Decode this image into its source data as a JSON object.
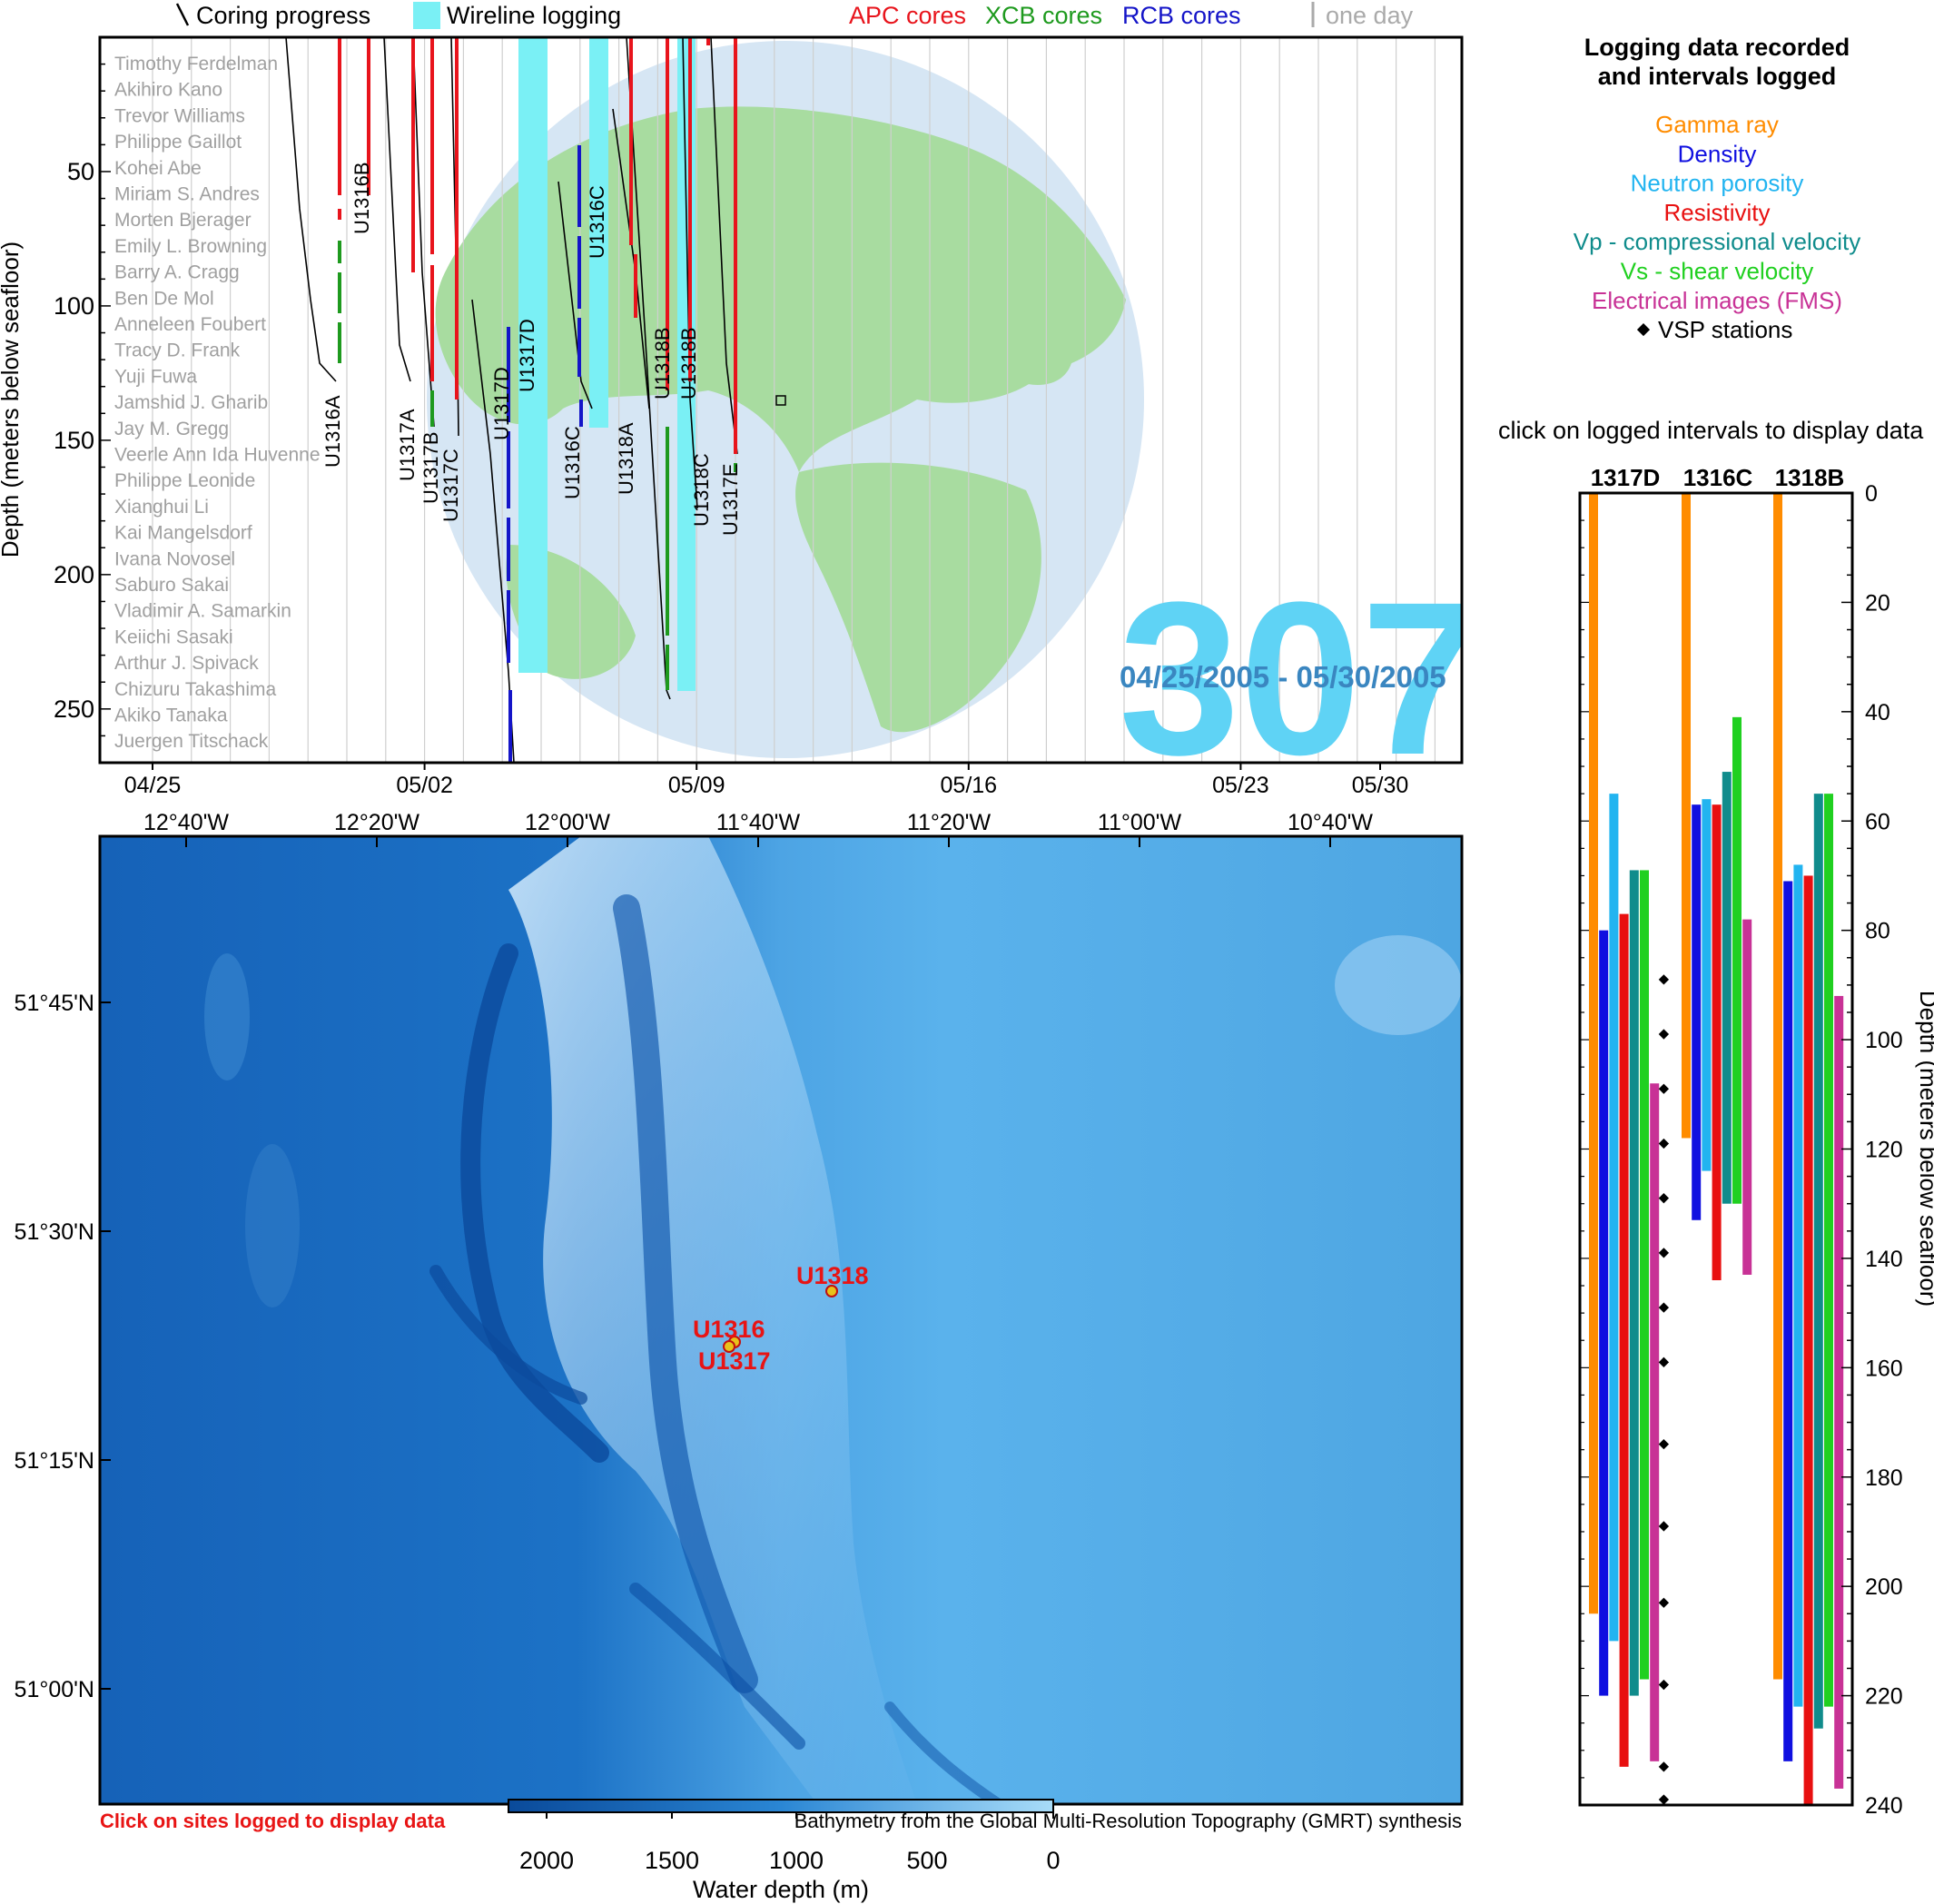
{
  "legend": {
    "coring": "Coring progress",
    "wireline": "Wireline logging",
    "apc": "APC cores",
    "xcb": "XCB cores",
    "rcb": "RCB cores",
    "oneday": "one day"
  },
  "colors": {
    "apc": "#e8141c",
    "xcb": "#1e9a1e",
    "rcb": "#1414c8",
    "wireline": "#7af0f5",
    "expedition_number": "#5fd3f5",
    "date_range": "#3a86c0",
    "globe_ocean": "#d6e6f4",
    "globe_land": "#a8dca0"
  },
  "expedition": {
    "number": "307",
    "date_range": "04/25/2005 - 05/30/2005"
  },
  "scientists": [
    "Timothy Ferdelman",
    "Akihiro Kano",
    "Trevor Williams",
    "Philippe Gaillot",
    "Kohei Abe",
    "Miriam S. Andres",
    "Morten Bjerager",
    "Emily L. Browning",
    "Barry A. Cragg",
    "Ben De Mol",
    "Anneleen Foubert",
    "Tracy D. Frank",
    "Yuji Fuwa",
    "Jamshid J. Gharib",
    "Jay M. Gregg",
    "Veerle Ann Ida Huvenne",
    "Philippe Leonide",
    "Xianghui Li",
    "Kai Mangelsdorf",
    "Ivana Novosel",
    "Saburo Sakai",
    "Vladimir A. Samarkin",
    "Keiichi Sasaki",
    "Arthur J. Spivack",
    "Chizuru Takashima",
    "Akiko Tanaka",
    "Juergen Titschack"
  ],
  "timeline": {
    "ylabel": "Depth (meters below seafloor)",
    "yticks": [
      "50",
      "100",
      "150",
      "200",
      "250"
    ],
    "xticks": [
      "04/25",
      "05/02",
      "05/09",
      "05/16",
      "05/23",
      "05/30"
    ]
  },
  "holes": [
    {
      "label": "U1316A"
    },
    {
      "label": "U1316B"
    },
    {
      "label": "U1317A"
    },
    {
      "label": "U1317B"
    },
    {
      "label": "U1317C"
    },
    {
      "label": "U1317D"
    },
    {
      "label": "U1317D"
    },
    {
      "label": "U1316C"
    },
    {
      "label": "U1316C"
    },
    {
      "label": "U1318A"
    },
    {
      "label": "U1318B"
    },
    {
      "label": "U1318B"
    },
    {
      "label": "U1318C"
    },
    {
      "label": "U1317E"
    }
  ],
  "map": {
    "lon_ticks": [
      "12°40'W",
      "12°20'W",
      "12°00'W",
      "11°40'W",
      "11°20'W",
      "11°00'W",
      "10°40'W"
    ],
    "lat_ticks": [
      "51°45'N",
      "51°30'N",
      "51°15'N",
      "51°00'N"
    ],
    "sites": [
      {
        "name": "U1318"
      },
      {
        "name": "U1316"
      },
      {
        "name": "U1317"
      }
    ],
    "click_note": "Click on sites logged to display data",
    "credit": "Bathymetry from the Global Multi-Resolution Topography (GMRT) synthesis",
    "colorbar_ticks": [
      "2000",
      "1500",
      "1000",
      "500",
      "0"
    ],
    "colorbar_label": "Water depth (m)"
  },
  "right_panel": {
    "title_line1": "Logging data recorded",
    "title_line2": "and intervals logged",
    "click_note": "click on logged intervals to display data",
    "ylabel": "Depth (meters below seafloor)",
    "depth_ticks": [
      "0",
      "20",
      "40",
      "60",
      "80",
      "100",
      "120",
      "140",
      "160",
      "180",
      "200",
      "220",
      "240"
    ],
    "holes": [
      "1317D",
      "1316C",
      "1318B"
    ],
    "log_types": [
      {
        "label": "Gamma ray",
        "color": "#ff8c00"
      },
      {
        "label": "Density",
        "color": "#1010e0"
      },
      {
        "label": "Neutron porosity",
        "color": "#22b4f0"
      },
      {
        "label": "Resistivity",
        "color": "#e81010"
      },
      {
        "label": "Vp - compressional velocity",
        "color": "#108c8c"
      },
      {
        "label": "Vs - shear velocity",
        "color": "#20d020"
      },
      {
        "label": "Electrical images (FMS)",
        "color": "#c83296"
      },
      {
        "label": "VSP stations",
        "color": "#000000"
      }
    ]
  },
  "chart_data": [
    {
      "type": "bar",
      "title": "Logging data recorded and intervals logged",
      "ylabel": "Depth (meters below seafloor)",
      "ylim": [
        0,
        240
      ],
      "categories": [
        "1317D",
        "1316C",
        "1318B"
      ],
      "series": [
        {
          "name": "Gamma ray",
          "intervals": [
            [
              0,
              205
            ],
            [
              0,
              118
            ],
            [
              0,
              217
            ]
          ]
        },
        {
          "name": "Density",
          "intervals": [
            [
              80,
              220
            ],
            [
              57,
              133
            ],
            [
              71,
              232
            ]
          ]
        },
        {
          "name": "Neutron porosity",
          "intervals": [
            [
              55,
              210
            ],
            [
              56,
              124
            ],
            [
              68,
              222
            ]
          ]
        },
        {
          "name": "Resistivity",
          "intervals": [
            [
              77,
              233
            ],
            [
              57,
              144
            ],
            [
              70,
              240
            ]
          ]
        },
        {
          "name": "Vp - compressional velocity",
          "intervals": [
            [
              69,
              220
            ],
            [
              51,
              130
            ],
            [
              55,
              226
            ]
          ]
        },
        {
          "name": "Vs - shear velocity",
          "intervals": [
            [
              69,
              217
            ],
            [
              41,
              130
            ],
            [
              55,
              222
            ]
          ]
        },
        {
          "name": "Electrical images (FMS)",
          "intervals": [
            [
              108,
              232
            ],
            [
              78,
              143
            ],
            [
              92,
              237
            ]
          ]
        }
      ],
      "vsp_stations_1317D": [
        89,
        99,
        109,
        119,
        129,
        139,
        149,
        159,
        174,
        189,
        203,
        218,
        233,
        239
      ]
    }
  ]
}
